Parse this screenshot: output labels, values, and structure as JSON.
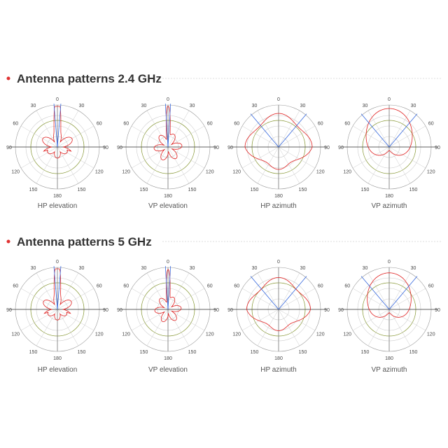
{
  "sections": [
    {
      "title": "Antenna patterns 2.4 GHz",
      "plots": [
        {
          "label": "HP elevation"
        },
        {
          "label": "VP elevation"
        },
        {
          "label": "HP azimuth"
        },
        {
          "label": "VP azimuth"
        }
      ]
    },
    {
      "title": "Antenna patterns 5 GHz",
      "plots": [
        {
          "label": "HP elevation"
        },
        {
          "label": "VP elevation"
        },
        {
          "label": "HP azimuth"
        },
        {
          "label": "VP azimuth"
        }
      ]
    }
  ],
  "angle_labels": [
    "0",
    "30",
    "60",
    "90",
    "120",
    "150",
    "180"
  ]
}
